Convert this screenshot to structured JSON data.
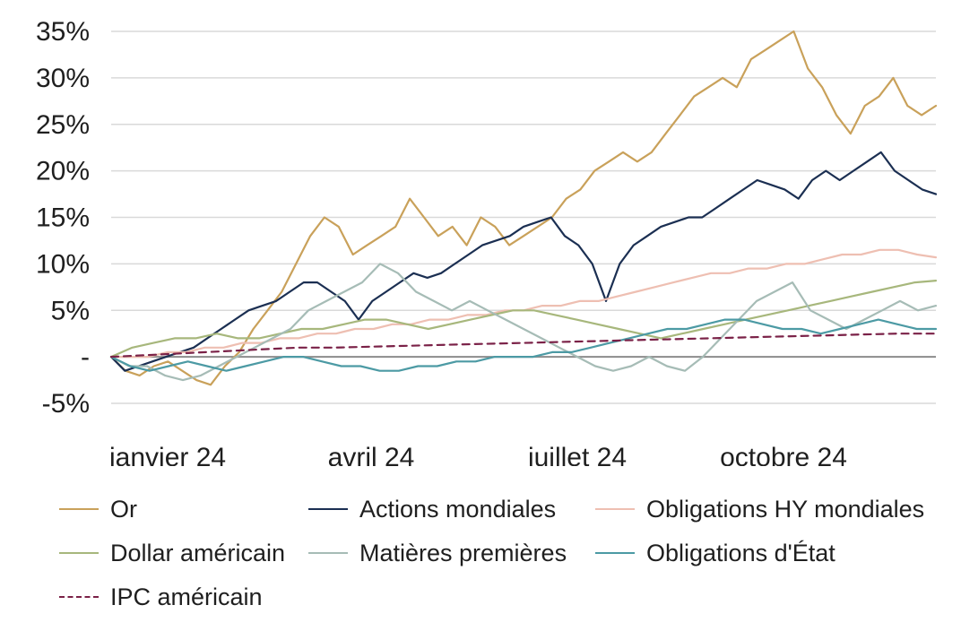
{
  "chart_data": {
    "type": "line",
    "title": "",
    "xlabel": "",
    "ylabel": "",
    "ylim": [
      -5,
      35
    ],
    "x_tick_labels": [
      "janvier 24",
      "avril 24",
      "juillet 24",
      "octobre 24"
    ],
    "y_tick_labels": [
      "35%",
      "30%",
      "25%",
      "20%",
      "15%",
      "10%",
      "5%",
      "-",
      "-5%"
    ],
    "y_tick_values": [
      35,
      30,
      25,
      20,
      15,
      10,
      5,
      0,
      -5
    ],
    "grid": true,
    "legend_position": "bottom",
    "x_axis": "weekly, January 2024 to December 2024",
    "series": [
      {
        "name": "Or",
        "color": "#c9a15a",
        "style": "solid",
        "values": [
          0,
          -1.5,
          -2,
          -1,
          -0.5,
          -1.5,
          -2.5,
          -3,
          -1,
          0.5,
          3,
          5,
          7,
          10,
          13,
          15,
          14,
          11,
          12,
          13,
          14,
          17,
          15,
          13,
          14,
          12,
          15,
          14,
          12,
          13,
          14,
          15,
          17,
          18,
          20,
          21,
          22,
          21,
          22,
          24,
          26,
          28,
          29,
          30,
          29,
          32,
          33,
          34,
          35,
          31,
          29,
          26,
          24,
          27,
          28,
          30,
          27,
          26,
          27
        ]
      },
      {
        "name": "Actions mondiales",
        "color": "#1b2f52",
        "style": "solid",
        "values": [
          0,
          -1.5,
          -1,
          -0.5,
          0,
          0.5,
          1,
          2,
          3,
          4,
          5,
          5.5,
          6,
          7,
          8,
          8,
          7,
          6,
          4,
          6,
          7,
          8,
          9,
          8.5,
          9,
          10,
          11,
          12,
          12.5,
          13,
          14,
          14.5,
          15,
          13,
          12,
          10,
          6,
          10,
          12,
          13,
          14,
          14.5,
          15,
          15,
          16,
          17,
          18,
          19,
          18.5,
          18,
          17,
          19,
          20,
          19,
          20,
          21,
          22,
          20,
          19,
          18,
          17.5
        ]
      },
      {
        "name": "Obligations HY mondiales",
        "color": "#eebfb2",
        "style": "solid",
        "values": [
          0,
          0,
          0,
          0.5,
          0.5,
          1,
          1,
          1.5,
          1.5,
          2,
          2,
          2.5,
          2.5,
          3,
          3,
          3.5,
          3.5,
          4,
          4,
          4.5,
          4.5,
          5,
          5,
          5.5,
          5.5,
          6,
          6,
          6.5,
          7,
          7.5,
          8,
          8.5,
          9,
          9,
          9.5,
          9.5,
          10,
          10,
          10.5,
          11,
          11,
          11.5,
          11.5,
          11,
          10.7
        ]
      },
      {
        "name": "Dollar américain",
        "color": "#a7b77c",
        "style": "solid",
        "values": [
          0,
          1,
          1.5,
          2,
          2,
          2.5,
          2,
          2,
          2.5,
          3,
          3,
          3.5,
          4,
          4,
          3.5,
          3,
          3.5,
          4,
          4.5,
          5,
          5,
          4.5,
          4,
          3.5,
          3,
          2.5,
          2,
          2.5,
          3,
          3.5,
          4,
          4.5,
          5,
          5.5,
          6,
          6.5,
          7,
          7.5,
          8,
          8.2
        ]
      },
      {
        "name": "Matières premières",
        "color": "#a6bcb6",
        "style": "solid",
        "values": [
          0,
          -1,
          -1,
          -2,
          -2.5,
          -2,
          -1,
          0,
          1,
          2,
          3,
          5,
          6,
          7,
          8,
          10,
          9,
          7,
          6,
          5,
          6,
          5,
          4,
          3,
          2,
          1,
          0,
          -1,
          -1.5,
          -1,
          0,
          -1,
          -1.5,
          0,
          2,
          4,
          6,
          7,
          8,
          5,
          4,
          3,
          4,
          5,
          6,
          5,
          5.5
        ]
      },
      {
        "name": "Obligations d'État",
        "color": "#4c9aa4",
        "style": "solid",
        "values": [
          0,
          -1,
          -1.5,
          -1,
          -0.5,
          -1,
          -1.5,
          -1,
          -0.5,
          0,
          0,
          -0.5,
          -1,
          -1,
          -1.5,
          -1.5,
          -1,
          -1,
          -0.5,
          -0.5,
          0,
          0,
          0,
          0.5,
          0.5,
          1,
          1.5,
          2,
          2.5,
          3,
          3,
          3.5,
          4,
          4,
          3.5,
          3,
          3,
          2.5,
          3,
          3.5,
          4,
          3.5,
          3,
          3
        ]
      },
      {
        "name": "IPC américain",
        "color": "#7a2147",
        "style": "dashed",
        "values": [
          0,
          0.2,
          0.4,
          0.6,
          0.8,
          1,
          1,
          1.1,
          1.2,
          1.3,
          1.4,
          1.5,
          1.6,
          1.7,
          1.8,
          1.9,
          2,
          2.1,
          2.2,
          2.3,
          2.4,
          2.5,
          2.5
        ]
      }
    ]
  },
  "legend": {
    "items": [
      {
        "label": "Or",
        "color": "#c9a15a",
        "dashed": false
      },
      {
        "label": "Actions mondiales",
        "color": "#1b2f52",
        "dashed": false
      },
      {
        "label": "Obligations HY mondiales",
        "color": "#eebfb2",
        "dashed": false
      },
      {
        "label": "Dollar américain",
        "color": "#a7b77c",
        "dashed": false
      },
      {
        "label": "Matières premières",
        "color": "#a6bcb6",
        "dashed": false
      },
      {
        "label": "Obligations d'État",
        "color": "#4c9aa4",
        "dashed": false
      },
      {
        "label": "IPC américain",
        "color": "#7a2147",
        "dashed": true
      }
    ]
  }
}
